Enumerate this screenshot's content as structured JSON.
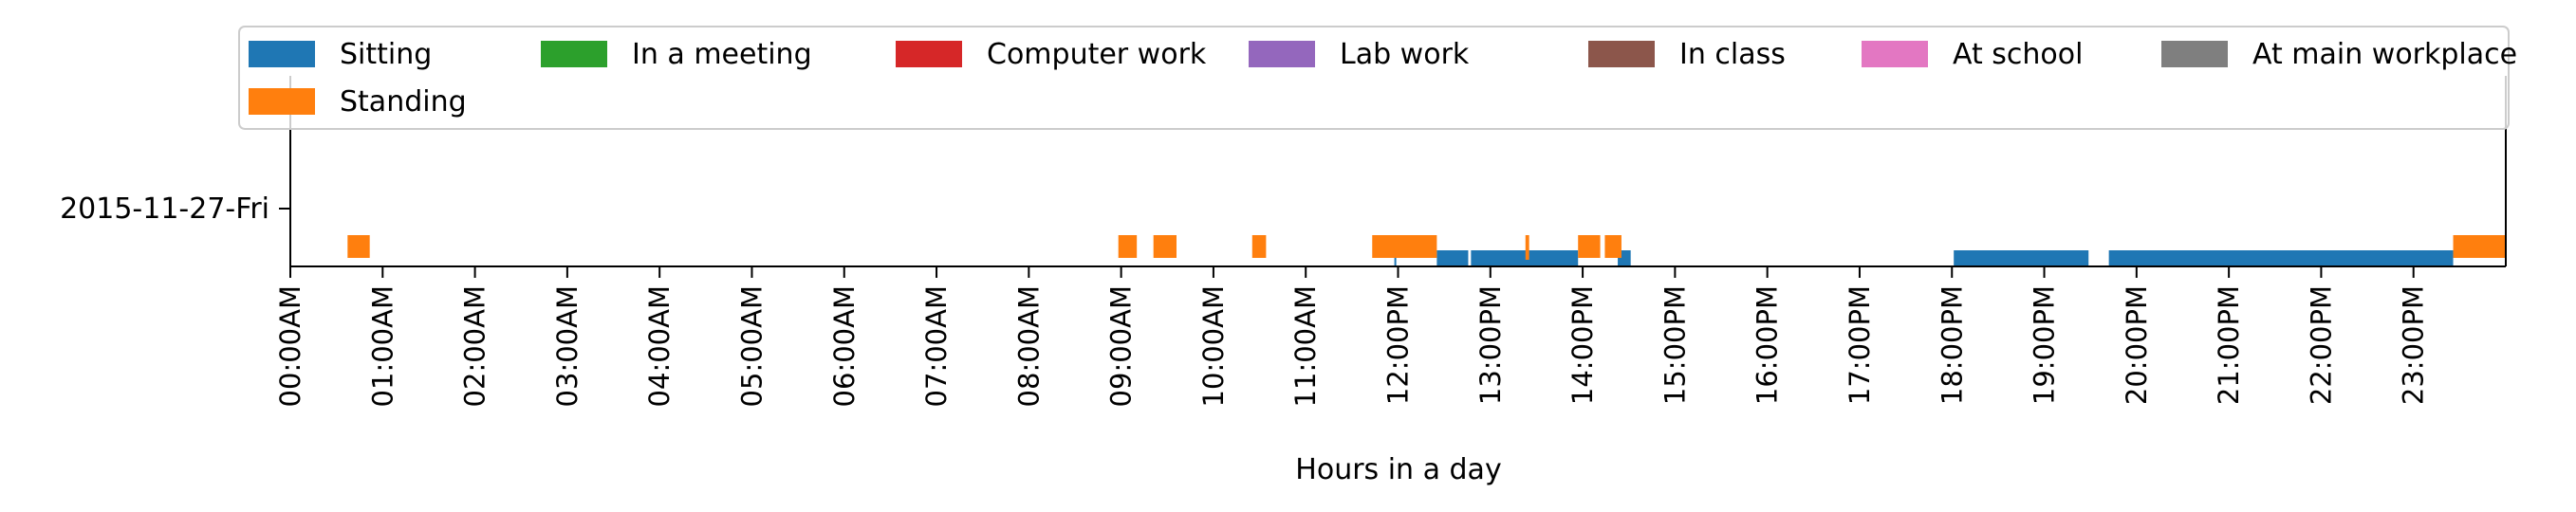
{
  "chart_data": {
    "type": "bar",
    "xlabel": "Hours in a day",
    "ylabel": "",
    "xlim": [
      0,
      24
    ],
    "y_categories": [
      "2015-11-27-Fri"
    ],
    "x_ticks": [
      {
        "value": 0,
        "label": "00:00AM"
      },
      {
        "value": 1,
        "label": "01:00AM"
      },
      {
        "value": 2,
        "label": "02:00AM"
      },
      {
        "value": 3,
        "label": "03:00AM"
      },
      {
        "value": 4,
        "label": "04:00AM"
      },
      {
        "value": 5,
        "label": "05:00AM"
      },
      {
        "value": 6,
        "label": "06:00AM"
      },
      {
        "value": 7,
        "label": "07:00AM"
      },
      {
        "value": 8,
        "label": "08:00AM"
      },
      {
        "value": 9,
        "label": "09:00AM"
      },
      {
        "value": 10,
        "label": "10:00AM"
      },
      {
        "value": 11,
        "label": "11:00AM"
      },
      {
        "value": 12,
        "label": "12:00PM"
      },
      {
        "value": 13,
        "label": "13:00PM"
      },
      {
        "value": 14,
        "label": "14:00PM"
      },
      {
        "value": 15,
        "label": "15:00PM"
      },
      {
        "value": 16,
        "label": "16:00PM"
      },
      {
        "value": 17,
        "label": "17:00PM"
      },
      {
        "value": 18,
        "label": "18:00PM"
      },
      {
        "value": 19,
        "label": "19:00PM"
      },
      {
        "value": 20,
        "label": "20:00PM"
      },
      {
        "value": 21,
        "label": "21:00PM"
      },
      {
        "value": 22,
        "label": "22:00PM"
      },
      {
        "value": 23,
        "label": "23:00PM"
      }
    ],
    "legend": {
      "placement": "top",
      "columns": 7,
      "entries": [
        {
          "name": "Sitting",
          "color": "#1f77b4"
        },
        {
          "name": "In a meeting",
          "color": "#2ca02c"
        },
        {
          "name": "Computer work",
          "color": "#d62728"
        },
        {
          "name": "Lab work",
          "color": "#9467bd"
        },
        {
          "name": "In class",
          "color": "#8c564b"
        },
        {
          "name": "At school",
          "color": "#e377c2"
        },
        {
          "name": "At main workplace",
          "color": "#7f7f7f"
        },
        {
          "name": "Standing",
          "color": "#ff7f0e"
        }
      ]
    },
    "series": [
      {
        "name": "Sitting",
        "color": "#1f77b4",
        "intervals": [
          [
            11.96,
            11.98
          ],
          [
            12.42,
            12.76
          ],
          [
            12.79,
            13.95
          ],
          [
            14.38,
            14.52
          ],
          [
            18.02,
            19.48
          ],
          [
            19.7,
            23.43
          ]
        ]
      },
      {
        "name": "Standing",
        "color": "#ff7f0e",
        "intervals": [
          [
            0.62,
            0.86
          ],
          [
            8.97,
            9.17
          ],
          [
            9.35,
            9.6
          ],
          [
            10.42,
            10.57
          ],
          [
            11.72,
            12.42
          ],
          [
            13.38,
            13.42
          ],
          [
            13.95,
            14.19
          ],
          [
            14.24,
            14.42
          ],
          [
            23.43,
            24.0
          ]
        ]
      }
    ]
  }
}
